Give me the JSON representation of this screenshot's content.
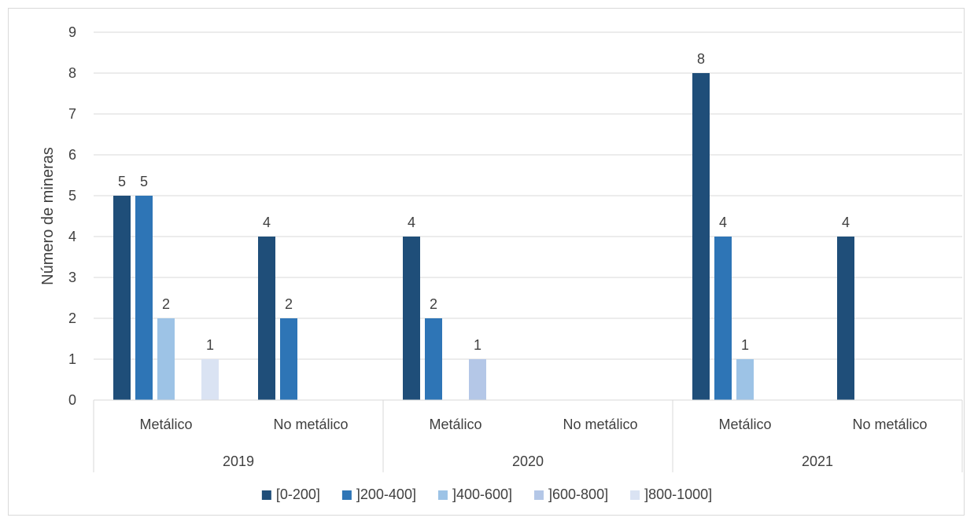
{
  "chart_data": {
    "type": "bar",
    "ylabel": "Número de mineras",
    "ylim": [
      0,
      9
    ],
    "yticks": [
      0,
      1,
      2,
      3,
      4,
      5,
      6,
      7,
      8,
      9
    ],
    "grid": true,
    "legend_position": "bottom",
    "groups": [
      {
        "label": "2019",
        "categories": [
          "Metálico",
          "No metálico"
        ]
      },
      {
        "label": "2020",
        "categories": [
          "Metálico",
          "No metálico"
        ]
      },
      {
        "label": "2021",
        "categories": [
          "Metálico",
          "No metálico"
        ]
      }
    ],
    "series": [
      {
        "name": "[0-200]",
        "color": "#1F4E79",
        "values": [
          5,
          4,
          4,
          null,
          8,
          4
        ]
      },
      {
        "name": "]200-400]",
        "color": "#2E75B6",
        "values": [
          5,
          2,
          2,
          null,
          4,
          null
        ]
      },
      {
        "name": "]400-600]",
        "color": "#9DC3E6",
        "values": [
          2,
          null,
          null,
          null,
          1,
          null
        ]
      },
      {
        "name": "]600-800]",
        "color": "#B4C7E7",
        "values": [
          null,
          null,
          1,
          null,
          null,
          null
        ]
      },
      {
        "name": "]800-1000]",
        "color": "#DAE3F3",
        "values": [
          1,
          null,
          null,
          null,
          null,
          null
        ]
      }
    ]
  }
}
